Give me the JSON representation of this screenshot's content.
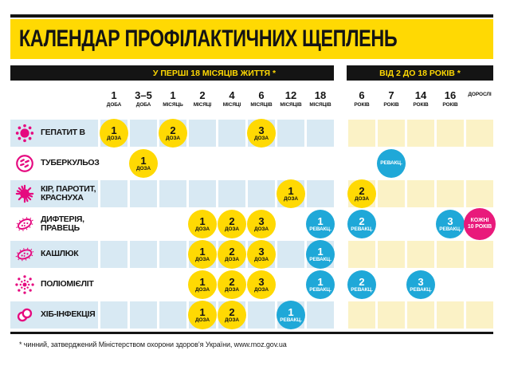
{
  "title": "КАЛЕНДАР ПРОФІЛАКТИЧНИХ ЩЕПЛЕНЬ",
  "sections": [
    {
      "label": "У ПЕРШІ 18 МІСЯЦІВ ЖИТТЯ *"
    },
    {
      "label": "ВІД 2 ДО 18 РОКІВ *"
    }
  ],
  "columns": [
    {
      "value": "1",
      "unit": "ДОБА"
    },
    {
      "value": "3–5",
      "unit": "ДОБА"
    },
    {
      "value": "1",
      "unit": "МІСЯЦЬ"
    },
    {
      "value": "2",
      "unit": "МІСЯЦІ"
    },
    {
      "value": "4",
      "unit": "МІСЯЦІ"
    },
    {
      "value": "6",
      "unit": "МІСЯЦІВ"
    },
    {
      "value": "12",
      "unit": "МІСЯЦІВ"
    },
    {
      "value": "18",
      "unit": "МІСЯЦІВ"
    },
    {
      "value": "6",
      "unit": "РОКІВ"
    },
    {
      "value": "7",
      "unit": "РОКІВ"
    },
    {
      "value": "14",
      "unit": "РОКІВ"
    },
    {
      "value": "16",
      "unit": "РОКІВ"
    },
    {
      "value": "",
      "unit": "ДОРОСЛІ"
    }
  ],
  "rows": [
    {
      "icon": "hepatitis-b-virus-icon",
      "label": "ГЕПАТИТ В",
      "cells": [
        {
          "col": 0,
          "type": "dose",
          "line1": "1",
          "line2": "ДОЗА"
        },
        {
          "col": 2,
          "type": "dose",
          "line1": "2",
          "line2": "ДОЗА"
        },
        {
          "col": 5,
          "type": "dose",
          "line1": "3",
          "line2": "ДОЗА"
        }
      ]
    },
    {
      "icon": "tuberculosis-bacteria-icon",
      "label": "ТУБЕРКУЛЬОЗ",
      "cells": [
        {
          "col": 1,
          "type": "dose",
          "line1": "1",
          "line2": "ДОЗА"
        },
        {
          "col": 9,
          "type": "revacc",
          "line1": "",
          "line2": "РЕВАКЦ."
        }
      ]
    },
    {
      "icon": "measles-rubella-virus-icon",
      "label": "КІР, ПАРОТИТ,\nКРАСНУХА",
      "cells": [
        {
          "col": 6,
          "type": "dose",
          "line1": "1",
          "line2": "ДОЗА"
        },
        {
          "col": 8,
          "type": "dose",
          "line1": "2",
          "line2": "ДОЗА"
        }
      ]
    },
    {
      "icon": "diphtheria-bacteria-icon",
      "label": "ДИФТЕРІЯ,\nПРАВЕЦЬ",
      "cells": [
        {
          "col": 3,
          "type": "dose",
          "line1": "1",
          "line2": "ДОЗА"
        },
        {
          "col": 4,
          "type": "dose",
          "line1": "2",
          "line2": "ДОЗА"
        },
        {
          "col": 5,
          "type": "dose",
          "line1": "3",
          "line2": "ДОЗА"
        },
        {
          "col": 7,
          "type": "revacc",
          "line1": "1",
          "line2": "РЕВАКЦ."
        },
        {
          "col": 8,
          "type": "revacc",
          "line1": "2",
          "line2": "РЕВАКЦ."
        },
        {
          "col": 11,
          "type": "revacc",
          "line1": "3",
          "line2": "РЕВАКЦ."
        },
        {
          "col": 12,
          "type": "every10",
          "line1": "КОЖНІ",
          "line2": "10 РОКІВ"
        }
      ]
    },
    {
      "icon": "pertussis-bacteria-icon",
      "label": "КАШЛЮК",
      "cells": [
        {
          "col": 3,
          "type": "dose",
          "line1": "1",
          "line2": "ДОЗА"
        },
        {
          "col": 4,
          "type": "dose",
          "line1": "2",
          "line2": "ДОЗА"
        },
        {
          "col": 5,
          "type": "dose",
          "line1": "3",
          "line2": "ДОЗА"
        },
        {
          "col": 7,
          "type": "revacc",
          "line1": "1",
          "line2": "РЕВАКЦ."
        }
      ]
    },
    {
      "icon": "polio-virus-icon",
      "label": "ПОЛІОМІЄЛІТ",
      "cells": [
        {
          "col": 3,
          "type": "dose",
          "line1": "1",
          "line2": "ДОЗА"
        },
        {
          "col": 4,
          "type": "dose",
          "line1": "2",
          "line2": "ДОЗА"
        },
        {
          "col": 5,
          "type": "dose",
          "line1": "3",
          "line2": "ДОЗА"
        },
        {
          "col": 7,
          "type": "revacc",
          "line1": "1",
          "line2": "РЕВАКЦ."
        },
        {
          "col": 8,
          "type": "revacc",
          "line1": "2",
          "line2": "РЕВАКЦ."
        },
        {
          "col": 10,
          "type": "revacc",
          "line1": "3",
          "line2": "РЕВАКЦ."
        }
      ]
    },
    {
      "icon": "hib-bacteria-icon",
      "label": "ХІБ-ІНФЕКЦІЯ",
      "cells": [
        {
          "col": 3,
          "type": "dose",
          "line1": "1",
          "line2": "ДОЗА"
        },
        {
          "col": 4,
          "type": "dose",
          "line1": "2",
          "line2": "ДОЗА"
        },
        {
          "col": 6,
          "type": "revacc",
          "line1": "1",
          "line2": "РЕВАКЦ."
        }
      ]
    }
  ],
  "footnote": "* чинний, затверджений Міністерством охорони здоров’я України, www.moz.gov.ua",
  "colors": {
    "accent_yellow": "#ffd903",
    "bar_black": "#141414",
    "dose_yellow": "#ffd903",
    "revaccination_blue": "#1fa8d8",
    "booster_pink": "#e9197b",
    "cell_blue_tint": "#d8e9f3",
    "cell_yellow_tint": "#fbf2c6",
    "icon_magenta": "#e5097f"
  }
}
